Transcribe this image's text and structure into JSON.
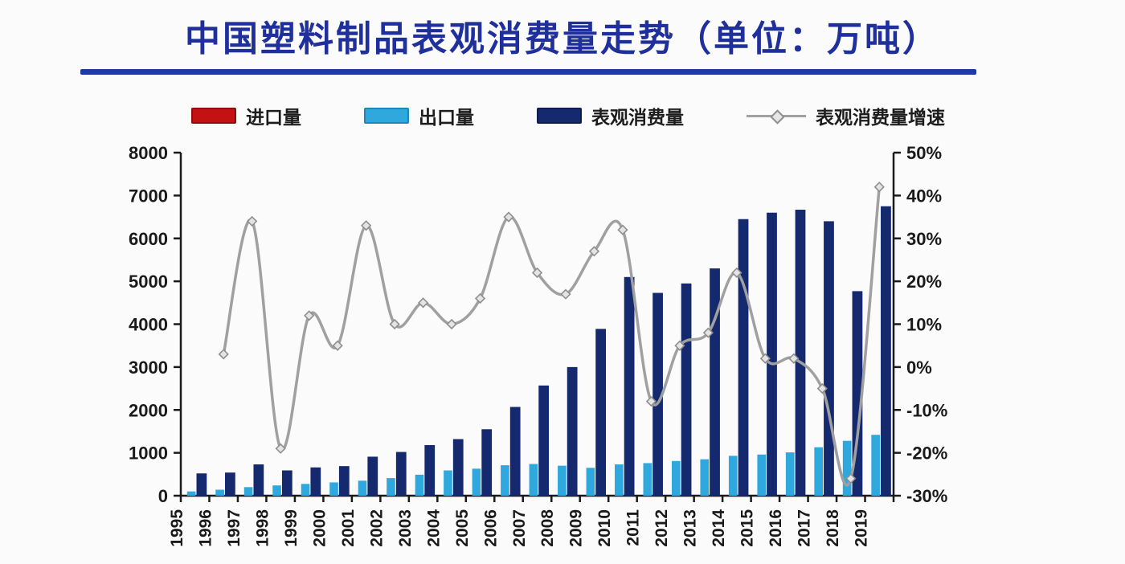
{
  "header": {
    "title": "中国塑料制品表观消费量走势（单位：万吨）"
  },
  "legend": {
    "items": [
      {
        "label": "进口量",
        "color": "#c41212",
        "type": "bar"
      },
      {
        "label": "出口量",
        "color": "#2fa8dd",
        "type": "bar"
      },
      {
        "label": "表观消费量",
        "color": "#15296e",
        "type": "bar"
      },
      {
        "label": "表观消费量增速",
        "color": "#a0a0a0",
        "type": "line"
      }
    ]
  },
  "chart_data": {
    "type": "bar",
    "title": "中国塑料制品表观消费量走势（单位：万吨）",
    "categories": [
      "1995",
      "1996",
      "1997",
      "1998",
      "1999",
      "2000",
      "2001",
      "2002",
      "2003",
      "2004",
      "2005",
      "2006",
      "2007",
      "2008",
      "2009",
      "2010",
      "2011",
      "2012",
      "2013",
      "2014",
      "2015",
      "2016",
      "2017",
      "2018",
      "2019"
    ],
    "series": [
      {
        "name": "进口量",
        "type": "bar",
        "axis": "left",
        "color": "#c41212",
        "values": [
          0,
          0,
          0,
          0,
          0,
          0,
          0,
          0,
          0,
          0,
          0,
          0,
          0,
          0,
          0,
          0,
          0,
          0,
          0,
          0,
          0,
          0,
          0,
          0,
          0
        ]
      },
      {
        "name": "出口量",
        "type": "bar",
        "axis": "left",
        "color": "#2fa8dd",
        "values": [
          100,
          140,
          200,
          240,
          275,
          310,
          350,
          410,
          490,
          590,
          630,
          710,
          740,
          700,
          650,
          730,
          760,
          810,
          850,
          930,
          960,
          1010,
          1130,
          1280,
          1420
        ]
      },
      {
        "name": "表观消费量",
        "type": "bar",
        "axis": "left",
        "color": "#15296e",
        "values": [
          520,
          540,
          730,
          590,
          660,
          690,
          910,
          1020,
          1180,
          1320,
          1550,
          2070,
          2570,
          3000,
          3890,
          5100,
          4730,
          4950,
          5300,
          6450,
          6600,
          6670,
          6400,
          4770,
          6750
        ]
      },
      {
        "name": "表观消费量增速",
        "type": "line",
        "axis": "right",
        "color": "#a0a0a0",
        "marker": "diamond",
        "values": [
          null,
          3,
          34,
          -19,
          12,
          5,
          33,
          10,
          15,
          10,
          16,
          35,
          22,
          17,
          27,
          32,
          -8,
          5,
          8,
          22,
          2,
          2,
          -5,
          -26,
          42
        ]
      }
    ],
    "left_axis": {
      "min": 0,
      "max": 8000,
      "step": 1000,
      "labels": [
        "0",
        "1000",
        "2000",
        "3000",
        "4000",
        "5000",
        "6000",
        "7000",
        "8000"
      ]
    },
    "right_axis": {
      "min": -30,
      "max": 50,
      "step": 10,
      "labels": [
        "-30%",
        "-20%",
        "-10%",
        "0%",
        "10%",
        "20%",
        "30%",
        "40%",
        "50%"
      ]
    },
    "grid": false,
    "legend_position": "top"
  }
}
